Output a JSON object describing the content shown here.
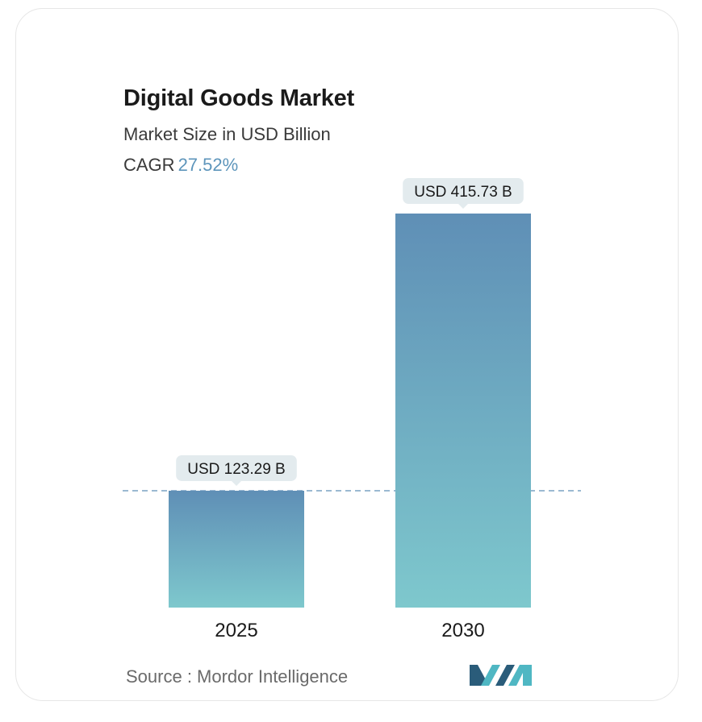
{
  "header": {
    "title": "Digital Goods Market",
    "subtitle": "Market Size in USD Billion",
    "cagr_label": "CAGR",
    "cagr_value": "27.52%"
  },
  "footer": {
    "source_text": "Source :  Mordor Intelligence",
    "logo_icon": "mordor-intelligence-logo-icon"
  },
  "colors": {
    "bar_top": "#5f8fb6",
    "bar_bottom": "#7ec8cd",
    "callout_bg": "#e3ebee",
    "reference_line": "#5f8fb6",
    "cagr_accent": "#5d95bb",
    "logo_dark": "#2a5c7a",
    "logo_light": "#4fb7c3"
  },
  "chart_data": {
    "type": "bar",
    "title": "Digital Goods Market",
    "subtitle": "Market Size in USD Billion",
    "categories": [
      "2025",
      "2030"
    ],
    "values": [
      123.29,
      415.73
    ],
    "data_labels": [
      "USD 123.29 B",
      "USD 415.73 B"
    ],
    "unit": "USD Billion",
    "ylim": [
      0,
      415.73
    ],
    "grid": false,
    "reference_line": "dashed line at 2025 value"
  }
}
